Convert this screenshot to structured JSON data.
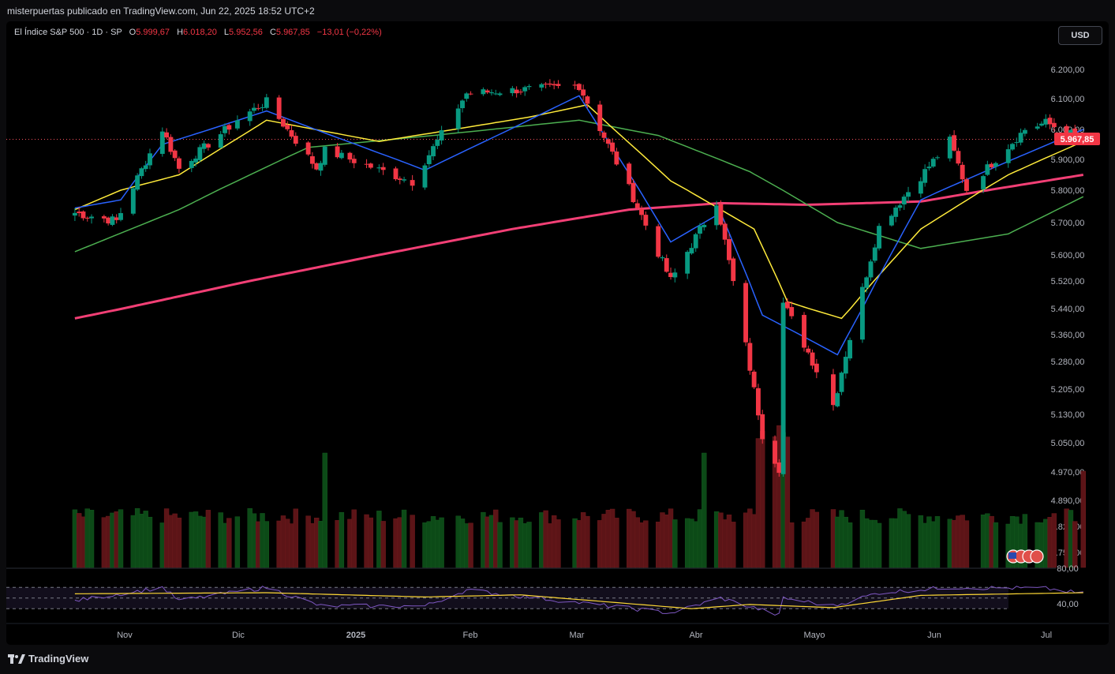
{
  "header": {
    "publisher": "misterpuertas publicado en TradingView.com, Jun 22, 2025 18:52 UTC+2"
  },
  "legend": {
    "symbol": "El Índice S&P 500 · 1D · SP",
    "open_label": "O",
    "open": "5.999,67",
    "high_label": "H",
    "high": "6.018,20",
    "low_label": "L",
    "low": "5.952,56",
    "close_label": "C",
    "close": "5.967,85",
    "change": "−13,01 (−0,22%)"
  },
  "currency_button": "USD",
  "footer": {
    "brand": "TradingView"
  },
  "colors": {
    "up": "#089981",
    "down": "#f23645",
    "ma200": "#f23f75",
    "ma50": "#4caf50",
    "ma20": "#ffeb3b",
    "ma10": "#2962ff",
    "rsi": "#7e57c2",
    "rsi_ma": "#fdd835"
  },
  "chart_data": {
    "type": "candlestick",
    "price_axis_ticks": [
      "6.200,00",
      "6.100,00",
      "6.000,00",
      "5.900,00",
      "5.800,00",
      "5.700,00",
      "5.600,00",
      "5.520,00",
      "5.440,00",
      "5.360,00",
      "5.280,00",
      "5.205,00",
      "5.130,00",
      "5.050,00",
      "4.970,00",
      "4.890,00",
      "4.820,00",
      "4.755,00"
    ],
    "last_price_label": "5.967,85",
    "rsi_axis_ticks": [
      "80,00",
      "40,00"
    ],
    "x_tick_labels": [
      "Nov",
      "Dic",
      "2025",
      "Feb",
      "Mar",
      "Abr",
      "Mayo",
      "Jun",
      "Jul"
    ],
    "anchors": [
      [
        "2024-10-21",
        5730
      ],
      [
        "2024-10-31",
        5705
      ],
      [
        "2024-11-11",
        6001
      ],
      [
        "2024-11-15",
        5870
      ],
      [
        "2024-11-29",
        6032
      ],
      [
        "2024-12-06",
        6090
      ],
      [
        "2024-12-18",
        5872
      ],
      [
        "2024-12-20",
        5930
      ],
      [
        "2025-01-10",
        5827
      ],
      [
        "2025-01-23",
        6118
      ],
      [
        "2025-02-19",
        6144
      ],
      [
        "2025-03-04",
        5778
      ],
      [
        "2025-03-13",
        5521
      ],
      [
        "2025-03-24",
        5767
      ],
      [
        "2025-04-04",
        5074
      ],
      [
        "2025-04-08",
        4982
      ],
      [
        "2025-04-09",
        5456
      ],
      [
        "2025-04-21",
        5158
      ],
      [
        "2025-05-02",
        5686
      ],
      [
        "2025-05-12",
        5844
      ],
      [
        "2025-05-19",
        5963
      ],
      [
        "2025-05-23",
        5802
      ],
      [
        "2025-06-06",
        6000
      ],
      [
        "2025-06-11",
        6022
      ],
      [
        "2025-06-20",
        5967.85
      ]
    ],
    "moving_averages": [
      {
        "color": "#f23f75",
        "points": [
          [
            "2024-10-21",
            5410
          ],
          [
            "2024-12-02",
            5520
          ],
          [
            "2025-01-02",
            5600
          ],
          [
            "2025-02-03",
            5680
          ],
          [
            "2025-03-03",
            5740
          ],
          [
            "2025-03-25",
            5760
          ],
          [
            "2025-04-15",
            5755
          ],
          [
            "2025-05-12",
            5765
          ],
          [
            "2025-06-20",
            5850
          ]
        ]
      },
      {
        "color": "#4caf50",
        "points": [
          [
            "2024-10-21",
            5610
          ],
          [
            "2024-11-15",
            5740
          ],
          [
            "2024-12-16",
            5940
          ],
          [
            "2025-01-15",
            5980
          ],
          [
            "2025-02-19",
            6030
          ],
          [
            "2025-03-10",
            5980
          ],
          [
            "2025-04-01",
            5860
          ],
          [
            "2025-04-22",
            5700
          ],
          [
            "2025-05-12",
            5620
          ],
          [
            "2025-06-02",
            5665
          ],
          [
            "2025-06-20",
            5780
          ]
        ]
      },
      {
        "color": "#ffeb3b",
        "points": [
          [
            "2024-10-21",
            5740
          ],
          [
            "2024-11-01",
            5800
          ],
          [
            "2024-11-15",
            5850
          ],
          [
            "2024-12-06",
            6030
          ],
          [
            "2025-01-02",
            5960
          ],
          [
            "2025-02-07",
            6040
          ],
          [
            "2025-02-21",
            6080
          ],
          [
            "2025-03-13",
            5830
          ],
          [
            "2025-04-02",
            5680
          ],
          [
            "2025-04-10",
            5460
          ],
          [
            "2025-04-23",
            5410
          ],
          [
            "2025-05-12",
            5680
          ],
          [
            "2025-06-02",
            5850
          ],
          [
            "2025-06-20",
            5960
          ]
        ]
      },
      {
        "color": "#2962ff",
        "points": [
          [
            "2024-10-21",
            5745
          ],
          [
            "2024-11-01",
            5770
          ],
          [
            "2024-11-11",
            5950
          ],
          [
            "2024-12-06",
            6060
          ],
          [
            "2025-01-13",
            5865
          ],
          [
            "2025-02-19",
            6110
          ],
          [
            "2025-03-13",
            5640
          ],
          [
            "2025-03-25",
            5730
          ],
          [
            "2025-04-04",
            5420
          ],
          [
            "2025-04-22",
            5300
          ],
          [
            "2025-05-12",
            5770
          ],
          [
            "2025-06-20",
            6000
          ]
        ]
      }
    ],
    "rsi": {
      "ylim": [
        20,
        100
      ],
      "guides": [
        70,
        50,
        30
      ],
      "indicator_points": [
        [
          "2024-10-21",
          45
        ],
        [
          "2024-11-11",
          70
        ],
        [
          "2024-11-15",
          45
        ],
        [
          "2024-12-06",
          70
        ],
        [
          "2024-12-19",
          35
        ],
        [
          "2025-01-13",
          35
        ],
        [
          "2025-01-23",
          65
        ],
        [
          "2025-03-13",
          22
        ],
        [
          "2025-03-25",
          50
        ],
        [
          "2025-04-08",
          18
        ],
        [
          "2025-04-09",
          50
        ],
        [
          "2025-04-21",
          35
        ],
        [
          "2025-05-02",
          60
        ],
        [
          "2025-05-19",
          70
        ],
        [
          "2025-06-11",
          68
        ],
        [
          "2025-06-20",
          58
        ]
      ],
      "ma_points": [
        [
          "2024-10-21",
          58
        ],
        [
          "2024-12-06",
          60
        ],
        [
          "2025-01-13",
          52
        ],
        [
          "2025-02-05",
          56
        ],
        [
          "2025-03-18",
          30
        ],
        [
          "2025-04-01",
          38
        ],
        [
          "2025-04-21",
          32
        ],
        [
          "2025-05-12",
          55
        ],
        [
          "2025-06-20",
          60
        ]
      ]
    }
  }
}
